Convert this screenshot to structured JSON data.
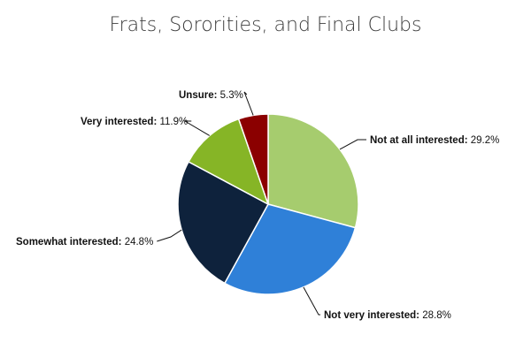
{
  "chart_data": {
    "type": "pie",
    "title": "Frats, Sororities, and Final Clubs",
    "slices": [
      {
        "label": "Not at all interested",
        "value": 29.2,
        "display": "29.2%",
        "color": "#a6cc6e"
      },
      {
        "label": "Not very interested",
        "value": 28.8,
        "display": "28.8%",
        "color": "#2f80d8"
      },
      {
        "label": "Somewhat interested",
        "value": 24.8,
        "display": "24.8%",
        "color": "#0e223c"
      },
      {
        "label": "Very interested",
        "value": 11.9,
        "display": "11.9%",
        "color": "#86b526"
      },
      {
        "label": "Unsure",
        "value": 5.3,
        "display": "5.3%",
        "color": "#8b0000"
      }
    ],
    "start_direction": "12 o'clock",
    "direction": "clockwise",
    "legend": "none (data labels with leader lines)"
  }
}
